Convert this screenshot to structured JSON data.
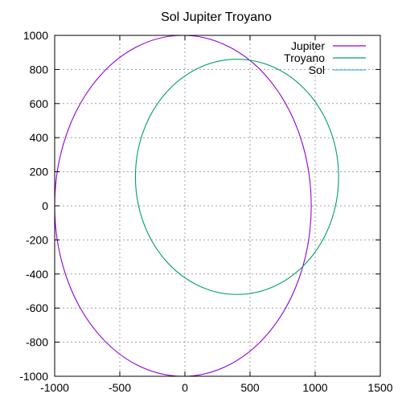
{
  "chart_data": {
    "type": "line",
    "title": "Sol Jupiter Troyano",
    "xlabel": "",
    "ylabel": "",
    "xlim": [
      -1000,
      1500
    ],
    "ylim": [
      -1000,
      1000
    ],
    "x_ticks": [
      -1000,
      -500,
      0,
      500,
      1000,
      1500
    ],
    "y_ticks": [
      -1000,
      -800,
      -600,
      -400,
      -200,
      0,
      200,
      400,
      600,
      800,
      1000
    ],
    "grid": true,
    "legend_position": "top-right",
    "series": [
      {
        "name": "Jupiter",
        "color": "#9400d3",
        "shape": "ellipse",
        "center": [
          -15,
          0
        ],
        "radius_x": 985,
        "radius_y": 1000
      },
      {
        "name": "Troyano",
        "color": "#009e73",
        "shape": "ellipse",
        "center": [
          400,
          170
        ],
        "radius_x": 780,
        "radius_y": 690
      },
      {
        "name": "Sol",
        "color": "#56b4e9",
        "shape": "point",
        "x": [
          0
        ],
        "y": [
          0
        ]
      }
    ]
  }
}
